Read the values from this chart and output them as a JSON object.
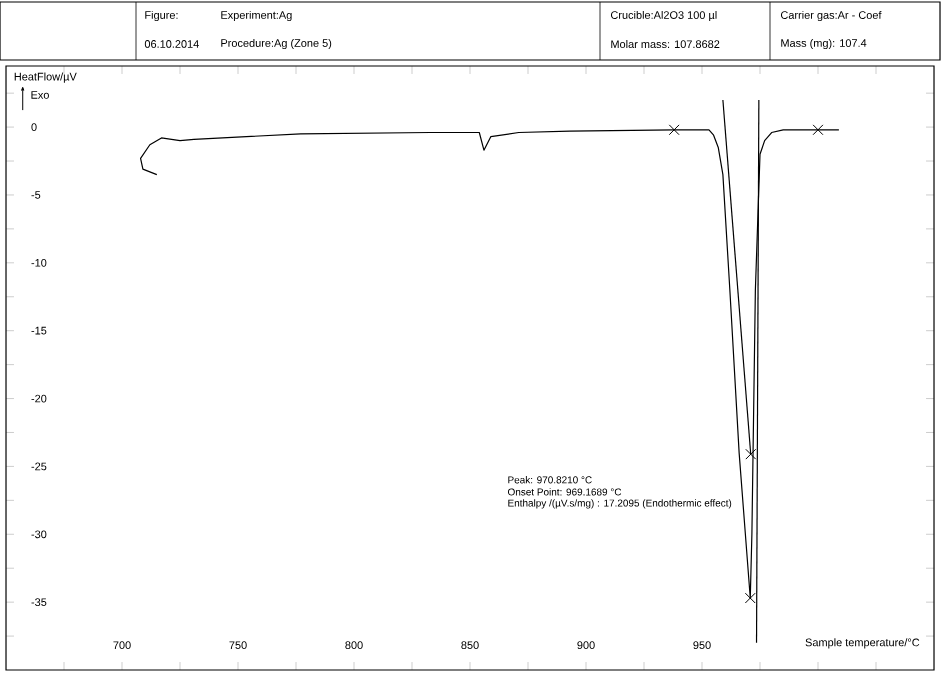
{
  "chart_data": {
    "type": "line",
    "xlabel": "Sample temperature/°C",
    "ylabel": "HeatFlow/µV",
    "annotations": [
      "Figure:",
      "Experiment:Ag",
      "06.10.2014",
      "Procedure:Ag (Zone 5)",
      "Crucible:Al2O3 100 µl",
      "Molar mass: 107.8682",
      "Carrier gas:Ar - Coef",
      "Mass (mg): 107.4",
      "Peak: 970.8210 °C",
      "Onset Point: 969.1689 °C",
      "Enthalpy /(µV.s/mg) : 17.2095 (Endothermic effect)",
      "Exo"
    ],
    "xlim": [
      650,
      1050
    ],
    "ylim": [
      -40,
      4.5
    ],
    "xticks": [
      {
        "value": 675,
        "label": null
      },
      700,
      {
        "value": 725,
        "label": null
      },
      750,
      {
        "value": 775,
        "label": null
      },
      800,
      {
        "value": 825,
        "label": null
      },
      850,
      {
        "value": 875,
        "label": null
      },
      900,
      {
        "value": 925,
        "label": null
      },
      950,
      {
        "value": 975,
        "label": null
      },
      {
        "value": 1000,
        "label": null
      },
      {
        "value": 1025,
        "label": null
      }
    ],
    "yticks": [
      {
        "value": 2.5,
        "label": null
      },
      0,
      {
        "value": -2.5,
        "label": null
      },
      -5,
      {
        "value": -7.5,
        "label": null
      },
      -10,
      {
        "value": -12.5,
        "label": null
      },
      -15,
      {
        "value": -17.5,
        "label": null
      },
      -20,
      {
        "value": -22.5,
        "label": null
      },
      -25,
      {
        "value": -27.5,
        "label": null
      },
      -30,
      {
        "value": -32.5,
        "label": null
      },
      -35,
      {
        "value": -37.5,
        "label": null
      }
    ],
    "series": [
      {
        "color": "#000000",
        "x": [
          715,
          709,
          708,
          712,
          717,
          725,
          731,
          777,
          833,
          854,
          856,
          859,
          871,
          893,
          938,
          953,
          955,
          957,
          959,
          962,
          966,
          970.8,
          971.5,
          973,
          975,
          977,
          980,
          985,
          1000,
          1009
        ],
        "values": [
          -3.5,
          -3.1,
          -2.3,
          -1.3,
          -0.8,
          -1.0,
          -0.9,
          -0.5,
          -0.4,
          -0.4,
          -1.7,
          -0.7,
          -0.4,
          -0.3,
          -0.2,
          -0.2,
          -0.6,
          -1.5,
          -3.5,
          -12,
          -24,
          -34.7,
          -30,
          -12,
          -2,
          -1,
          -0.4,
          -0.2,
          -0.2,
          -0.2
        ]
      },
      {
        "color": "#000000",
        "x": [
          959,
          971
        ],
        "values": [
          2,
          -24.1
        ]
      },
      {
        "color": "#000000",
        "x": [
          974.5,
          973.5
        ],
        "values": [
          2,
          -38
        ]
      },
      {
        "type": "scatter",
        "marker": "cross",
        "color": "#000000",
        "x": [
          938,
          1000,
          971,
          970.8
        ],
        "values": [
          -0.2,
          -0.2,
          -24.1,
          -34.7
        ]
      }
    ]
  }
}
